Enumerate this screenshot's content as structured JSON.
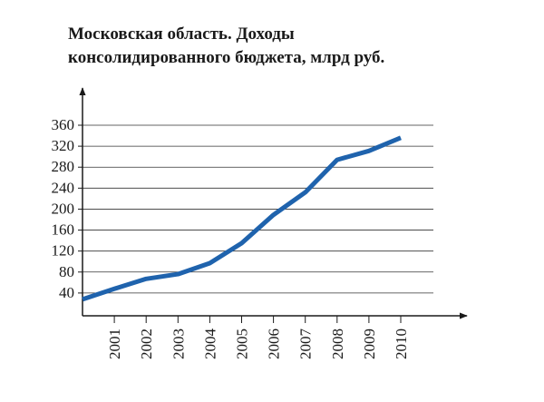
{
  "chart_data": {
    "type": "line",
    "title": [
      "Московская область. Доходы",
      "консолидированного бюджета, млрд руб."
    ],
    "categories": [
      null,
      "2001",
      "2002",
      "2003",
      "2004",
      "2005",
      "2006",
      "2007",
      "2008",
      "2009",
      "2010"
    ],
    "series": [
      {
        "name": null,
        "color": "#1f63ad",
        "values": [
          28,
          48,
          67,
          76,
          97,
          135,
          189,
          232,
          294,
          311,
          336
        ]
      }
    ],
    "ylim": [
      0,
      360
    ],
    "yticks": [
      40,
      80,
      120,
      160,
      200,
      240,
      280,
      320,
      360
    ],
    "grid": true
  }
}
